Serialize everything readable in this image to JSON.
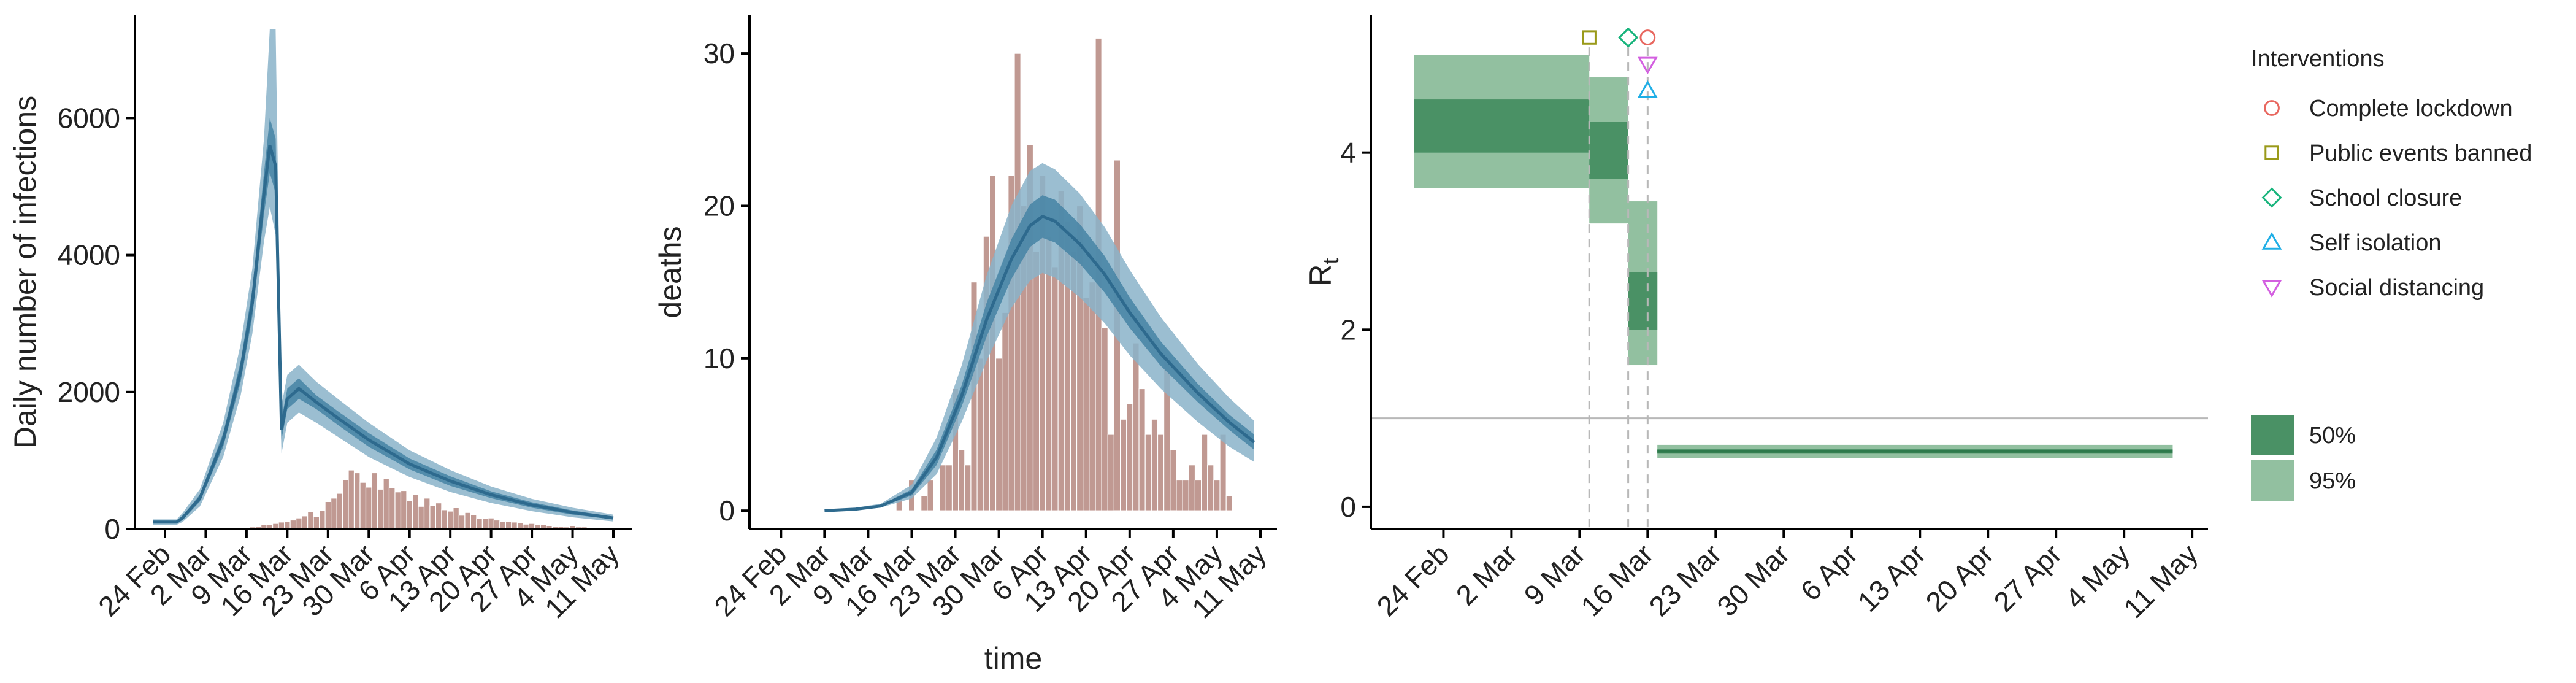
{
  "colors": {
    "blue_dark": "#2e6a8e",
    "blue_band50": "#4a86a6",
    "blue_band95": "#8ab3c9",
    "bar_fill": "#c09992",
    "bar_stroke": "#ffffff",
    "green50": "#4a9165",
    "green95": "#92c0a0",
    "green_line": "#2e7a4c",
    "lockdown": "#e8675f",
    "public_events": "#9a9a1a",
    "school": "#18b47c",
    "self_isolation": "#1eaee6",
    "social_distancing": "#d35fe0",
    "ref_line": "#b8b8b8",
    "dash_line": "#b8b8b8"
  },
  "date_ticks": [
    "24 Feb",
    "2 Mar",
    "9 Mar",
    "16 Mar",
    "23 Mar",
    "30 Mar",
    "6 Apr",
    "13 Apr",
    "20 Apr",
    "27 Apr",
    "4 May",
    "11 May"
  ],
  "chart_data": [
    {
      "id": "infections",
      "type": "area",
      "xlabel": "",
      "ylabel": "Daily number of infections",
      "ylim": [
        0,
        7500
      ],
      "yticks": [
        "0",
        "2000",
        "4000",
        "6000"
      ],
      "x_start": "2020-02-22",
      "x_end": "2020-05-11",
      "grid": false,
      "series": [
        {
          "kind": "bands",
          "x": [
            "2020-02-22",
            "2020-02-26",
            "2020-02-27",
            "2020-03-01",
            "2020-03-05",
            "2020-03-08",
            "2020-03-10",
            "2020-03-12",
            "2020-03-13",
            "2020-03-14",
            "2020-03-15",
            "2020-03-16",
            "2020-03-18",
            "2020-03-21",
            "2020-03-25",
            "2020-03-30",
            "2020-04-06",
            "2020-04-13",
            "2020-04-20",
            "2020-04-27",
            "2020-05-04",
            "2020-05-11"
          ],
          "median": [
            100,
            100,
            160,
            450,
            1300,
            2300,
            3300,
            4900,
            5600,
            5300,
            1450,
            1900,
            2050,
            1850,
            1600,
            1300,
            950,
            700,
            500,
            350,
            240,
            160
          ],
          "lo50": [
            80,
            80,
            130,
            400,
            1200,
            2150,
            3100,
            4600,
            5200,
            4900,
            1300,
            1750,
            1900,
            1750,
            1500,
            1200,
            870,
            630,
            450,
            310,
            210,
            140
          ],
          "hi50": [
            120,
            120,
            190,
            500,
            1400,
            2450,
            3500,
            5200,
            6000,
            5700,
            1600,
            2050,
            2200,
            1950,
            1700,
            1400,
            1030,
            770,
            550,
            390,
            270,
            180
          ],
          "lo95": [
            60,
            60,
            100,
            330,
            1050,
            1950,
            2850,
            4200,
            4700,
            4300,
            1100,
            1550,
            1700,
            1550,
            1330,
            1050,
            760,
            540,
            380,
            260,
            170,
            110
          ],
          "hi95": [
            140,
            140,
            230,
            580,
            1550,
            2700,
            3800,
            5700,
            7300,
            7300,
            1800,
            2250,
            2400,
            2150,
            1880,
            1550,
            1150,
            860,
            620,
            440,
            310,
            210
          ]
        },
        {
          "kind": "bars",
          "name": "",
          "start": "2020-03-03",
          "values": [
            5,
            5,
            10,
            10,
            15,
            20,
            20,
            30,
            40,
            60,
            60,
            80,
            100,
            110,
            130,
            160,
            190,
            250,
            180,
            270,
            400,
            450,
            520,
            720,
            860,
            820,
            680,
            610,
            820,
            580,
            740,
            600,
            540,
            560,
            410,
            500,
            330,
            450,
            340,
            380,
            280,
            260,
            310,
            200,
            240,
            210,
            150,
            150,
            160,
            130,
            110,
            110,
            100,
            90,
            70,
            80,
            60,
            60,
            50,
            40,
            40,
            30,
            50,
            30,
            30,
            20,
            20,
            20,
            20,
            20,
            15
          ]
        }
      ]
    },
    {
      "id": "deaths",
      "type": "area",
      "xlabel": "time",
      "ylabel": "deaths",
      "ylim": [
        -1.2,
        32.5
      ],
      "yticks": [
        "0",
        "10",
        "20",
        "30"
      ],
      "x_start": "2020-02-22",
      "x_end": "2020-05-11",
      "grid": false,
      "series": [
        {
          "kind": "bands",
          "x": [
            "2020-03-02",
            "2020-03-07",
            "2020-03-11",
            "2020-03-16",
            "2020-03-20",
            "2020-03-24",
            "2020-03-28",
            "2020-04-01",
            "2020-04-04",
            "2020-04-06",
            "2020-04-08",
            "2020-04-12",
            "2020-04-16",
            "2020-04-20",
            "2020-04-25",
            "2020-05-01",
            "2020-05-06",
            "2020-05-10"
          ],
          "median": [
            0,
            0.1,
            0.3,
            1.2,
            3.5,
            7.5,
            12.5,
            16.5,
            18.7,
            19.3,
            19.0,
            17.5,
            15.5,
            13.0,
            10.3,
            7.7,
            5.8,
            4.5
          ],
          "lo50": [
            0,
            0.1,
            0.25,
            1.0,
            3.0,
            6.8,
            11.4,
            15.2,
            17.3,
            17.9,
            17.6,
            16.2,
            14.3,
            12.0,
            9.5,
            7.1,
            5.3,
            4.0
          ],
          "hi50": [
            0,
            0.15,
            0.35,
            1.4,
            4.0,
            8.2,
            13.6,
            17.8,
            20.1,
            20.7,
            20.4,
            18.8,
            16.7,
            14.0,
            11.1,
            8.3,
            6.3,
            5.0
          ],
          "lo95": [
            0,
            0.05,
            0.2,
            0.8,
            2.4,
            5.8,
            9.8,
            13.3,
            15.1,
            15.6,
            15.3,
            14.0,
            12.3,
            10.2,
            8.0,
            5.8,
            4.2,
            3.2
          ],
          "hi95": [
            0,
            0.2,
            0.45,
            1.7,
            4.8,
            9.5,
            15.4,
            20.0,
            22.3,
            22.8,
            22.4,
            20.8,
            18.6,
            15.8,
            12.7,
            9.6,
            7.4,
            5.9
          ]
        },
        {
          "kind": "bars",
          "name": "",
          "start": "2020-03-14",
          "values": [
            1,
            0,
            2,
            0,
            1,
            2,
            0,
            3,
            3,
            8,
            4,
            3,
            15,
            10,
            18,
            22,
            10,
            13,
            22,
            30,
            20,
            24,
            17,
            22,
            18,
            16,
            21,
            19,
            17,
            20,
            14,
            15,
            31,
            12,
            5,
            23,
            6,
            7,
            11,
            8,
            5,
            6,
            5,
            10,
            4,
            2,
            2,
            3,
            2,
            5,
            3,
            2,
            5,
            1
          ]
        }
      ]
    },
    {
      "id": "rt",
      "type": "area",
      "xlabel": "",
      "ylabel": "R",
      "ylabel_sub": "t",
      "ylim": [
        -0.25,
        5.55
      ],
      "yticks": [
        "0",
        "2",
        "4"
      ],
      "x_start": "2020-02-20",
      "x_end": "2020-05-12",
      "reference_line": 1,
      "grid": false,
      "steps": [
        {
          "from": "2020-02-21",
          "to": "2020-03-10",
          "lo95": 3.6,
          "lo50": 4.0,
          "hi50": 4.6,
          "hi95": 5.1
        },
        {
          "from": "2020-03-10",
          "to": "2020-03-14",
          "lo95": 3.2,
          "lo50": 3.7,
          "hi50": 4.35,
          "hi95": 4.85
        },
        {
          "from": "2020-03-14",
          "to": "2020-03-17",
          "lo95": 1.6,
          "lo50": 2.0,
          "hi50": 2.65,
          "hi95": 3.45
        },
        {
          "from": "2020-03-17",
          "to": "2020-05-09",
          "lo95": 0.55,
          "lo50": 0.6,
          "hi50": 0.65,
          "hi95": 0.7
        }
      ],
      "interventions": [
        {
          "name": "Public events banned",
          "date": "2020-03-10",
          "marker": "square",
          "color_key": "public_events",
          "marker_y": 5.3
        },
        {
          "name": "School closure",
          "date": "2020-03-14",
          "marker": "diamond",
          "color_key": "school",
          "marker_y": 5.3
        },
        {
          "name": "Complete lockdown",
          "date": "2020-03-16",
          "marker": "circle",
          "color_key": "lockdown",
          "marker_y": 5.3
        },
        {
          "name": "Social distancing",
          "date": "2020-03-16",
          "marker": "triangle-down",
          "color_key": "social_distancing",
          "marker_y": 5.0
        },
        {
          "name": "Self isolation",
          "date": "2020-03-16",
          "marker": "triangle-up",
          "color_key": "self_isolation",
          "marker_y": 4.7
        }
      ]
    }
  ],
  "legend": {
    "title": "Interventions",
    "items": [
      {
        "label": "Complete lockdown",
        "marker": "circle",
        "color_key": "lockdown"
      },
      {
        "label": "Public events banned",
        "marker": "square",
        "color_key": "public_events"
      },
      {
        "label": "School closure",
        "marker": "diamond",
        "color_key": "school"
      },
      {
        "label": "Self isolation",
        "marker": "triangle-up",
        "color_key": "self_isolation"
      },
      {
        "label": "Social distancing",
        "marker": "triangle-down",
        "color_key": "social_distancing"
      }
    ],
    "ci_items": [
      {
        "label": "50%",
        "color_key": "green50"
      },
      {
        "label": "95%",
        "color_key": "green95"
      }
    ]
  }
}
